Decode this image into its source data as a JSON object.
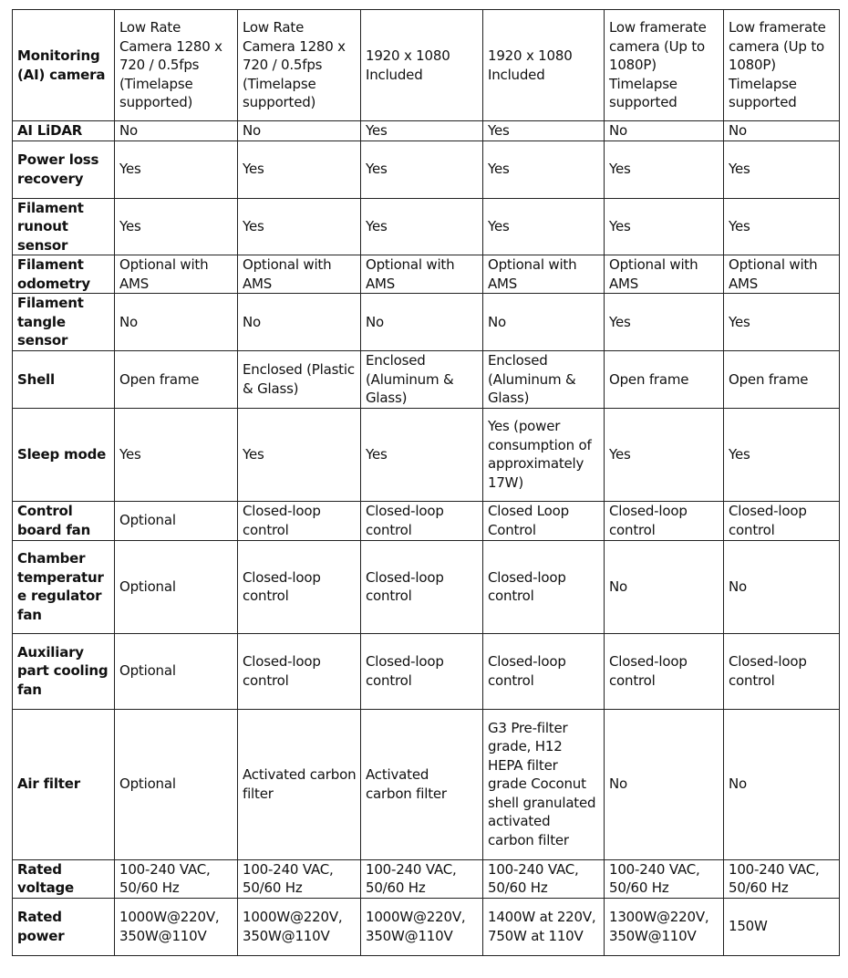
{
  "rows": [
    {
      "label": "Monitoring (AI) camera",
      "values": [
        "Low Rate Camera 1280 x 720 / 0.5fps (Timelapse supported)",
        "Low Rate Camera 1280 x 720 / 0.5fps (Timelapse supported)",
        "1920 x 1080 Included",
        "1920 x 1080 Included",
        "Low framerate camera (Up to 1080P) Timelapse supported",
        "Low framerate camera (Up to 1080P) Timelapse supported"
      ]
    },
    {
      "label": "AI LiDAR",
      "values": [
        "No",
        "No",
        "Yes",
        "Yes",
        "No",
        "No"
      ]
    },
    {
      "label": "Power loss recovery",
      "values": [
        "Yes",
        "Yes",
        "Yes",
        "Yes",
        "Yes",
        "Yes"
      ]
    },
    {
      "label": "Filament runout sensor",
      "values": [
        "Yes",
        "Yes",
        "Yes",
        "Yes",
        "Yes",
        "Yes"
      ]
    },
    {
      "label": "Filament odometry",
      "values": [
        "Optional with AMS",
        "Optional with AMS",
        "Optional with AMS",
        "Optional with AMS",
        "Optional with AMS",
        "Optional with AMS"
      ]
    },
    {
      "label": "Filament tangle sensor",
      "values": [
        "No",
        "No",
        "No",
        "No",
        "Yes",
        "Yes"
      ]
    },
    {
      "label": "Shell",
      "values": [
        "Open frame",
        "Enclosed (Plastic & Glass)",
        "Enclosed (Aluminum & Glass)",
        "Enclosed (Aluminum & Glass)",
        "Open frame",
        "Open frame"
      ]
    },
    {
      "label": "Sleep mode",
      "values": [
        "Yes",
        "Yes",
        "Yes",
        "Yes (power consumption of approximately 17W)",
        "Yes",
        "Yes"
      ]
    },
    {
      "label": "Control board fan",
      "values": [
        "Optional",
        "Closed-loop control",
        "Closed-loop control",
        "Closed Loop Control",
        "Closed-loop control",
        "Closed-loop control"
      ]
    },
    {
      "label": "Chamber temperature regulator fan",
      "values": [
        "Optional",
        "Closed-loop control",
        "Closed-loop control",
        "Closed-loop control",
        "No",
        "No"
      ]
    },
    {
      "label": "Auxiliary part cooling fan",
      "values": [
        "Optional",
        "Closed-loop control",
        "Closed-loop control",
        "Closed-loop control",
        "Closed-loop control",
        "Closed-loop control"
      ]
    },
    {
      "label": "Air filter",
      "values": [
        "Optional",
        "Activated carbon filter",
        "Activated carbon filter",
        "G3 Pre-filter grade, H12 HEPA filter grade Coconut shell granulated activated carbon filter",
        "No",
        "No"
      ]
    },
    {
      "label": "Rated voltage",
      "values": [
        "100-240 VAC, 50/60 Hz",
        "100-240 VAC, 50/60 Hz",
        "100-240 VAC, 50/60 Hz",
        "100-240 VAC, 50/60 Hz",
        "100-240 VAC, 50/60 Hz",
        "100-240 VAC, 50/60 Hz"
      ]
    },
    {
      "label": "Rated power",
      "values": [
        "1000W@220V, 350W@110V",
        "1000W@220V, 350W@110V",
        "1000W@220V, 350W@110V",
        "1400W at 220V, 750W at 110V",
        "1300W@220V, 350W@110V",
        "150W"
      ]
    }
  ]
}
